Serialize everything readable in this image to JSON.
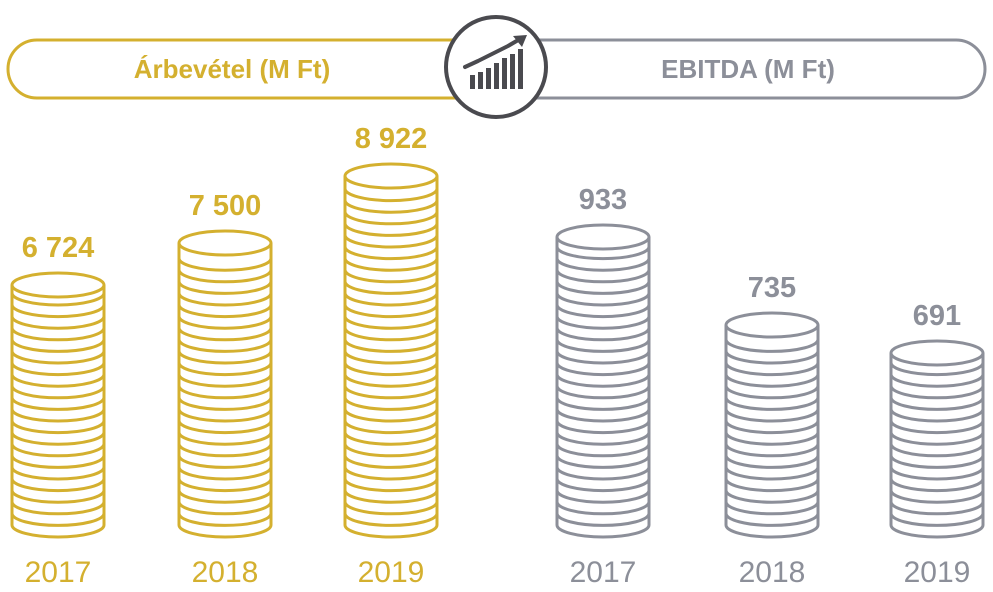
{
  "colors": {
    "gold": "#D4B02F",
    "gray": "#8C8F99",
    "dark": "#4A4A4F"
  },
  "header": {
    "left_title": "Árbevétel (M Ft)",
    "right_title": "EBITDA (M Ft)",
    "center_icon": "growth-bar-chart-icon"
  },
  "chart_data": [
    {
      "type": "bar",
      "title": "Árbevétel (M Ft)",
      "categories": [
        "2017",
        "2018",
        "2019"
      ],
      "values": [
        6724,
        7500,
        8922
      ],
      "value_labels": [
        "6 724",
        "7 500",
        "8 922"
      ],
      "color": "#D4B02F"
    },
    {
      "type": "bar",
      "title": "EBITDA (M Ft)",
      "categories": [
        "2017",
        "2018",
        "2019"
      ],
      "values": [
        933,
        735,
        691
      ],
      "value_labels": [
        "933",
        "735",
        "691"
      ],
      "color": "#8C8F99"
    }
  ]
}
